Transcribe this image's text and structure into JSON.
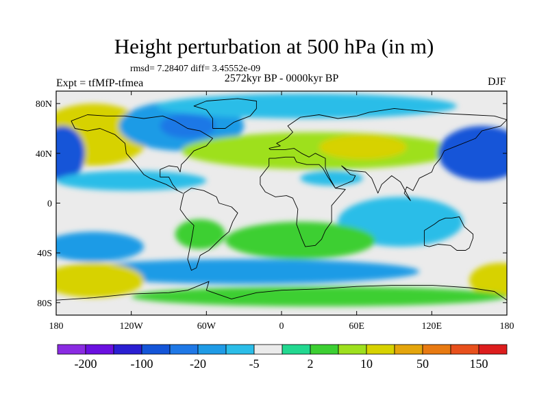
{
  "title": "Height perturbation at 500 hPa (in m)",
  "stats_line": "rmsd= 7.28407 diff= 3.45552e-09",
  "experiment_label": "Expt = tfMfP-tfmea",
  "period_label": "2572kyr BP - 0000kyr BP",
  "season_label": "DJF",
  "map": {
    "lon_range": [
      -180,
      180
    ],
    "lat_range": [
      -90,
      90
    ],
    "background_color": "#ebebeb",
    "y_ticks": [
      {
        "lat": 80,
        "label": "80N"
      },
      {
        "lat": 40,
        "label": "40N"
      },
      {
        "lat": 0,
        "label": "0"
      },
      {
        "lat": -40,
        "label": "40S"
      },
      {
        "lat": -80,
        "label": "80S"
      }
    ],
    "x_ticks": [
      {
        "lon": -180,
        "label": "180"
      },
      {
        "lon": -120,
        "label": "120W"
      },
      {
        "lon": -60,
        "label": "60W"
      },
      {
        "lon": 0,
        "label": "0"
      },
      {
        "lon": 60,
        "label": "60E"
      },
      {
        "lon": 120,
        "label": "120E"
      },
      {
        "lon": 180,
        "label": "180"
      }
    ]
  },
  "colorbar": {
    "colors": [
      "#8a2be2",
      "#6a10e0",
      "#2a1fd2",
      "#1455d8",
      "#1f78e6",
      "#1f9be6",
      "#2bbde8",
      "#ebebeb",
      "#22d890",
      "#3ccf32",
      "#9ee01e",
      "#d7d200",
      "#e4a50c",
      "#e87a12",
      "#e8501c",
      "#dd1d1d"
    ],
    "labels": [
      {
        "after_box": 1,
        "text": "-200"
      },
      {
        "after_box": 3,
        "text": "-100"
      },
      {
        "after_box": 5,
        "text": "-20"
      },
      {
        "after_box": 7,
        "text": "-5"
      },
      {
        "after_box": 9,
        "text": "2"
      },
      {
        "after_box": 11,
        "text": "10"
      },
      {
        "after_box": 13,
        "text": "50"
      },
      {
        "after_box": 15,
        "text": "150"
      }
    ]
  },
  "fields": [
    {
      "name": "north-pacific-positive-anomaly",
      "level": 30,
      "lon": -150,
      "lat": 55,
      "rlon": 45,
      "rlat": 25
    },
    {
      "name": "canada-negative-anomaly",
      "level": -10,
      "lon": -80,
      "lat": 62,
      "rlon": 50,
      "rlat": 20
    },
    {
      "name": "hudson-bay-negative-core",
      "level": -40,
      "lon": -75,
      "lat": 62,
      "rlon": 22,
      "rlat": 10
    },
    {
      "name": "arctic-negative-band",
      "level": -8,
      "lon": 20,
      "lat": 78,
      "rlon": 120,
      "rlat": 10
    },
    {
      "name": "eurasia-positive-band",
      "level": 10,
      "lon": 30,
      "lat": 42,
      "rlon": 110,
      "rlat": 15
    },
    {
      "name": "central-asia-positive-core",
      "level": 30,
      "lon": 65,
      "lat": 45,
      "rlon": 35,
      "rlat": 10
    },
    {
      "name": "west-pacific-negative-anomaly",
      "level": -50,
      "lon": 160,
      "lat": 40,
      "rlon": 35,
      "rlat": 22
    },
    {
      "name": "dateline-negative-anomaly",
      "level": -50,
      "lon": -175,
      "lat": 40,
      "rlon": 18,
      "rlat": 22
    },
    {
      "name": "tropical-pacific-negative-band",
      "level": -8,
      "lon": -120,
      "lat": 18,
      "rlon": 60,
      "rlat": 8
    },
    {
      "name": "north-africa-negative-patch",
      "level": -8,
      "lon": 40,
      "lat": 20,
      "rlon": 25,
      "rlat": 6
    },
    {
      "name": "indian-ocean-negative-anomaly",
      "level": -8,
      "lon": 95,
      "lat": -15,
      "rlon": 50,
      "rlat": 20
    },
    {
      "name": "south-pacific-negative-anomaly",
      "level": -15,
      "lon": -150,
      "lat": -35,
      "rlon": 40,
      "rlat": 12
    },
    {
      "name": "south-atlantic-positive-anomaly",
      "level": 8,
      "lon": 15,
      "lat": -30,
      "rlon": 60,
      "rlat": 15
    },
    {
      "name": "south-america-positive-patch",
      "level": 5,
      "lon": -65,
      "lat": -25,
      "rlon": 20,
      "rlat": 12
    },
    {
      "name": "southern-ocean-negative-band",
      "level": -12,
      "lon": -30,
      "lat": -55,
      "rlon": 140,
      "rlat": 10
    },
    {
      "name": "south-west-pacific-positive-anomaly",
      "level": 40,
      "lon": -150,
      "lat": -62,
      "rlon": 40,
      "rlat": 14
    },
    {
      "name": "south-east-pacific-positive-anomaly",
      "level": 40,
      "lon": 175,
      "lat": -62,
      "rlon": 25,
      "rlat": 14
    },
    {
      "name": "antarctic-positive-band",
      "level": 8,
      "lon": 30,
      "lat": -75,
      "rlon": 150,
      "rlat": 8
    }
  ],
  "coastlines": [
    {
      "name": "north-america-coastline",
      "points": [
        [
          -168,
          66
        ],
        [
          -155,
          71
        ],
        [
          -140,
          70
        ],
        [
          -125,
          70
        ],
        [
          -110,
          68
        ],
        [
          -95,
          70
        ],
        [
          -85,
          66
        ],
        [
          -80,
          63
        ],
        [
          -75,
          60
        ],
        [
          -65,
          58
        ],
        [
          -55,
          52
        ],
        [
          -60,
          46
        ],
        [
          -70,
          42
        ],
        [
          -76,
          35
        ],
        [
          -80,
          31
        ],
        [
          -81,
          25
        ],
        [
          -83,
          29
        ],
        [
          -90,
          30
        ],
        [
          -97,
          27
        ],
        [
          -97,
          21
        ],
        [
          -90,
          21
        ],
        [
          -87,
          15
        ],
        [
          -83,
          10
        ],
        [
          -79,
          8
        ],
        [
          -85,
          11
        ],
        [
          -92,
          15
        ],
        [
          -105,
          20
        ],
        [
          -110,
          23
        ],
        [
          -117,
          32
        ],
        [
          -124,
          40
        ],
        [
          -125,
          48
        ],
        [
          -133,
          55
        ],
        [
          -145,
          60
        ],
        [
          -155,
          58
        ],
        [
          -165,
          60
        ],
        [
          -168,
          66
        ]
      ]
    },
    {
      "name": "south-america-coastline",
      "points": [
        [
          -78,
          8
        ],
        [
          -72,
          12
        ],
        [
          -62,
          10
        ],
        [
          -52,
          5
        ],
        [
          -50,
          0
        ],
        [
          -40,
          -3
        ],
        [
          -35,
          -8
        ],
        [
          -39,
          -15
        ],
        [
          -42,
          -23
        ],
        [
          -48,
          -28
        ],
        [
          -58,
          -38
        ],
        [
          -65,
          -42
        ],
        [
          -68,
          -52
        ],
        [
          -72,
          -54
        ],
        [
          -75,
          -45
        ],
        [
          -72,
          -30
        ],
        [
          -70,
          -18
        ],
        [
          -76,
          -12
        ],
        [
          -81,
          -5
        ],
        [
          -80,
          0
        ],
        [
          -78,
          8
        ]
      ]
    },
    {
      "name": "eurasia-africa-coastline",
      "points": [
        [
          -10,
          36
        ],
        [
          -5,
          36
        ],
        [
          3,
          37
        ],
        [
          10,
          37
        ],
        [
          12,
          33
        ],
        [
          20,
          31
        ],
        [
          30,
          31
        ],
        [
          33,
          28
        ],
        [
          37,
          21
        ],
        [
          43,
          12
        ],
        [
          51,
          11
        ],
        [
          40,
          -2
        ],
        [
          40,
          -15
        ],
        [
          35,
          -22
        ],
        [
          32,
          -29
        ],
        [
          27,
          -34
        ],
        [
          19,
          -35
        ],
        [
          16,
          -28
        ],
        [
          12,
          -17
        ],
        [
          13,
          -5
        ],
        [
          9,
          4
        ],
        [
          4,
          6
        ],
        [
          -5,
          5
        ],
        [
          -13,
          9
        ],
        [
          -17,
          15
        ],
        [
          -17,
          21
        ],
        [
          -10,
          30
        ],
        [
          -10,
          36
        ]
      ]
    },
    {
      "name": "eurasia-coastline",
      "points": [
        [
          -10,
          44
        ],
        [
          -1,
          46
        ],
        [
          -4,
          48
        ],
        [
          2,
          51
        ],
        [
          5,
          53
        ],
        [
          9,
          57
        ],
        [
          5,
          62
        ],
        [
          15,
          69
        ],
        [
          30,
          71
        ],
        [
          45,
          68
        ],
        [
          60,
          70
        ],
        [
          70,
          73
        ],
        [
          90,
          76
        ],
        [
          110,
          74
        ],
        [
          130,
          72
        ],
        [
          150,
          71
        ],
        [
          170,
          70
        ],
        [
          180,
          67
        ],
        [
          175,
          62
        ],
        [
          160,
          58
        ],
        [
          155,
          52
        ],
        [
          140,
          46
        ],
        [
          130,
          42
        ],
        [
          127,
          36
        ],
        [
          122,
          30
        ],
        [
          120,
          25
        ],
        [
          110,
          20
        ],
        [
          105,
          10
        ],
        [
          100,
          13
        ],
        [
          98,
          8
        ],
        [
          103,
          2
        ],
        [
          95,
          17
        ],
        [
          88,
          22
        ],
        [
          80,
          15
        ],
        [
          77,
          8
        ],
        [
          72,
          20
        ],
        [
          67,
          25
        ],
        [
          57,
          26
        ],
        [
          52,
          27
        ],
        [
          48,
          30
        ],
        [
          55,
          23
        ],
        [
          59,
          22
        ],
        [
          57,
          18
        ],
        [
          43,
          12
        ],
        [
          39,
          19
        ],
        [
          35,
          28
        ],
        [
          35,
          36
        ],
        [
          27,
          40
        ],
        [
          22,
          37
        ],
        [
          16,
          40
        ],
        [
          10,
          44
        ],
        [
          3,
          43
        ],
        [
          -9,
          43
        ],
        [
          -10,
          44
        ]
      ]
    },
    {
      "name": "greenland-coastline",
      "points": [
        [
          -55,
          60
        ],
        [
          -45,
          60
        ],
        [
          -38,
          65
        ],
        [
          -25,
          70
        ],
        [
          -20,
          76
        ],
        [
          -20,
          82
        ],
        [
          -35,
          84
        ],
        [
          -60,
          82
        ],
        [
          -70,
          78
        ],
        [
          -60,
          75
        ],
        [
          -55,
          68
        ],
        [
          -55,
          60
        ]
      ]
    },
    {
      "name": "australia-coastline",
      "points": [
        [
          114,
          -22
        ],
        [
          114,
          -34
        ],
        [
          118,
          -35
        ],
        [
          125,
          -33
        ],
        [
          135,
          -34
        ],
        [
          140,
          -38
        ],
        [
          147,
          -38
        ],
        [
          150,
          -36
        ],
        [
          153,
          -28
        ],
        [
          153,
          -25
        ],
        [
          146,
          -19
        ],
        [
          142,
          -11
        ],
        [
          136,
          -12
        ],
        [
          131,
          -12
        ],
        [
          126,
          -14
        ],
        [
          122,
          -17
        ],
        [
          114,
          -22
        ]
      ]
    },
    {
      "name": "antarctica-coastline",
      "points": [
        [
          -180,
          -78
        ],
        [
          -150,
          -76
        ],
        [
          -120,
          -73
        ],
        [
          -90,
          -72
        ],
        [
          -75,
          -70
        ],
        [
          -58,
          -63
        ],
        [
          -60,
          -70
        ],
        [
          -40,
          -77
        ],
        [
          -20,
          -72
        ],
        [
          0,
          -70
        ],
        [
          30,
          -69
        ],
        [
          60,
          -67
        ],
        [
          90,
          -66
        ],
        [
          120,
          -66
        ],
        [
          150,
          -68
        ],
        [
          170,
          -71
        ],
        [
          180,
          -78
        ]
      ]
    }
  ]
}
